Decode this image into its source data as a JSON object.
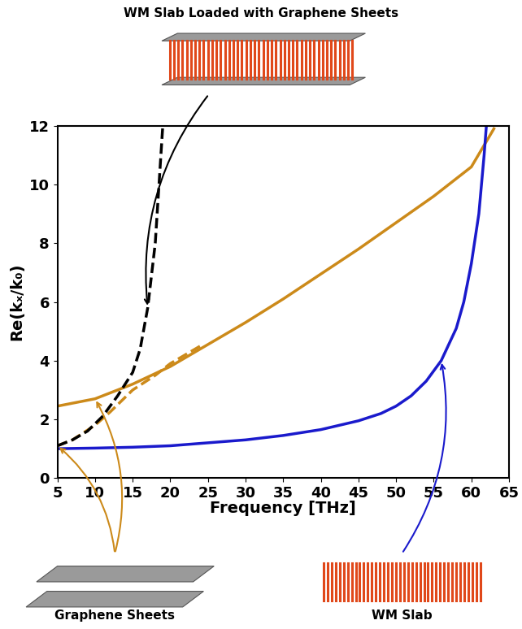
{
  "chart_data": {
    "type": "line",
    "x_label": "Frequency [THz]",
    "y_label": "Re(kₓ/k₀)",
    "xlim": [
      5,
      65
    ],
    "xticks": [
      5,
      10,
      15,
      20,
      25,
      30,
      35,
      40,
      45,
      50,
      55,
      60,
      65
    ],
    "ylim": [
      0,
      12
    ],
    "yticks": [
      0,
      2,
      4,
      6,
      8,
      10,
      12
    ],
    "grid": false,
    "series": [
      {
        "name": "Graphene Sheets",
        "color": "#cc8a1a",
        "line_style": "solid",
        "x": [
          5,
          10,
          15,
          20,
          25,
          30,
          35,
          40,
          45,
          50,
          55,
          60,
          63
        ],
        "values": [
          2.45,
          2.7,
          3.2,
          3.8,
          4.55,
          5.3,
          6.1,
          6.95,
          7.8,
          8.7,
          9.6,
          10.6,
          11.9
        ]
      },
      {
        "name": "Graphene Sheets",
        "color": "#cc8a1a",
        "line_style": "dashed",
        "x": [
          5,
          7,
          10,
          12,
          15,
          18,
          20,
          22,
          24
        ],
        "values": [
          1.1,
          1.3,
          1.8,
          2.25,
          3.0,
          3.5,
          3.9,
          4.2,
          4.5
        ]
      },
      {
        "name": "WM Slab",
        "color": "#1a1acc",
        "line_style": "solid",
        "x": [
          5,
          10,
          15,
          20,
          25,
          30,
          35,
          40,
          45,
          48,
          50,
          52,
          54,
          56,
          58,
          59,
          60,
          61,
          61.7,
          62
        ],
        "values": [
          1.0,
          1.02,
          1.05,
          1.1,
          1.2,
          1.3,
          1.45,
          1.65,
          1.95,
          2.2,
          2.45,
          2.8,
          3.3,
          4.0,
          5.1,
          6.0,
          7.3,
          9.0,
          11.0,
          12.0
        ]
      },
      {
        "name": "WM Slab Loaded with Graphene Sheets",
        "color": "#000000",
        "line_style": "dashed",
        "x": [
          5,
          7,
          9,
          11,
          13,
          15,
          16,
          17,
          18,
          18.5,
          19
        ],
        "values": [
          1.1,
          1.3,
          1.6,
          2.1,
          2.8,
          3.6,
          4.4,
          5.8,
          8.0,
          10.0,
          12.0
        ]
      }
    ]
  }
}
